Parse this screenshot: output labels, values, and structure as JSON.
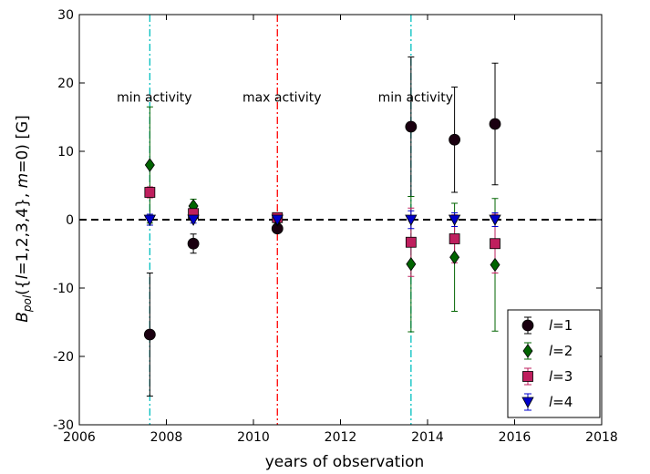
{
  "chart_data": {
    "type": "scatter",
    "title": "",
    "xlabel": "years of observation",
    "ylabel": "B_pol({l=1,2,3,4}, m=0) [G]",
    "xlim": [
      2006,
      2018
    ],
    "ylim": [
      -30,
      30
    ],
    "xticks": [
      2006,
      2008,
      2010,
      2012,
      2014,
      2016,
      2018
    ],
    "yticks": [
      -30,
      -20,
      -10,
      0,
      10,
      20,
      30
    ],
    "grid": false,
    "legend_position": "bottom-right",
    "zero_line": {
      "y": 0,
      "style": "dashed",
      "color": "#000000"
    },
    "vlines": [
      {
        "x": 2007.62,
        "color": "#00bfbf",
        "style": "dashdot",
        "label": "min activity"
      },
      {
        "x": 2010.55,
        "color": "#ff0000",
        "style": "dashdot",
        "label": "max activity"
      },
      {
        "x": 2013.62,
        "color": "#00bfbf",
        "style": "dashdot",
        "label": "min activity"
      }
    ],
    "series": [
      {
        "name": "l=1",
        "marker": "circle",
        "color": "#1a0010",
        "errcolor": "#000000",
        "points": [
          {
            "x": 2007.62,
            "y": -16.8,
            "err": 9.0
          },
          {
            "x": 2008.62,
            "y": -3.5,
            "err": 1.4
          },
          {
            "x": 2010.55,
            "y": -1.3,
            "err": 0.6
          },
          {
            "x": 2013.62,
            "y": 13.6,
            "err": 10.2
          },
          {
            "x": 2014.62,
            "y": 11.7,
            "err": 7.7
          },
          {
            "x": 2015.55,
            "y": 14.0,
            "err": 8.9
          }
        ]
      },
      {
        "name": "l=2",
        "marker": "diamond",
        "color": "#006400",
        "errcolor": "#006400",
        "points": [
          {
            "x": 2007.62,
            "y": 8.0,
            "err": 8.5
          },
          {
            "x": 2008.62,
            "y": 2.0,
            "err": 1.0
          },
          {
            "x": 2010.55,
            "y": 0.0,
            "err": 0.5
          },
          {
            "x": 2013.62,
            "y": -6.5,
            "err": 9.9
          },
          {
            "x": 2014.62,
            "y": -5.5,
            "err": 7.9
          },
          {
            "x": 2015.55,
            "y": -6.6,
            "err": 9.7
          }
        ]
      },
      {
        "name": "l=3",
        "marker": "square",
        "color": "#bf1f5e",
        "errcolor": "#bf1f5e",
        "points": [
          {
            "x": 2007.62,
            "y": 4.0,
            "err": 0.8
          },
          {
            "x": 2008.62,
            "y": 0.9,
            "err": 0.5
          },
          {
            "x": 2010.55,
            "y": 0.3,
            "err": 0.4
          },
          {
            "x": 2013.62,
            "y": -3.3,
            "err": 5.0
          },
          {
            "x": 2014.62,
            "y": -2.8,
            "err": 3.5
          },
          {
            "x": 2015.55,
            "y": -3.5,
            "err": 4.3
          }
        ]
      },
      {
        "name": "l=4",
        "marker": "triangle-down",
        "color": "#0000cc",
        "errcolor": "#0000cc",
        "points": [
          {
            "x": 2007.62,
            "y": 0.0,
            "err": 0.8
          },
          {
            "x": 2008.62,
            "y": 0.0,
            "err": 0.5
          },
          {
            "x": 2010.55,
            "y": 0.0,
            "err": 0.3
          },
          {
            "x": 2013.62,
            "y": 0.0,
            "err": 1.3
          },
          {
            "x": 2014.62,
            "y": 0.0,
            "err": 1.0
          },
          {
            "x": 2015.55,
            "y": 0.0,
            "err": 1.0
          }
        ]
      }
    ]
  }
}
